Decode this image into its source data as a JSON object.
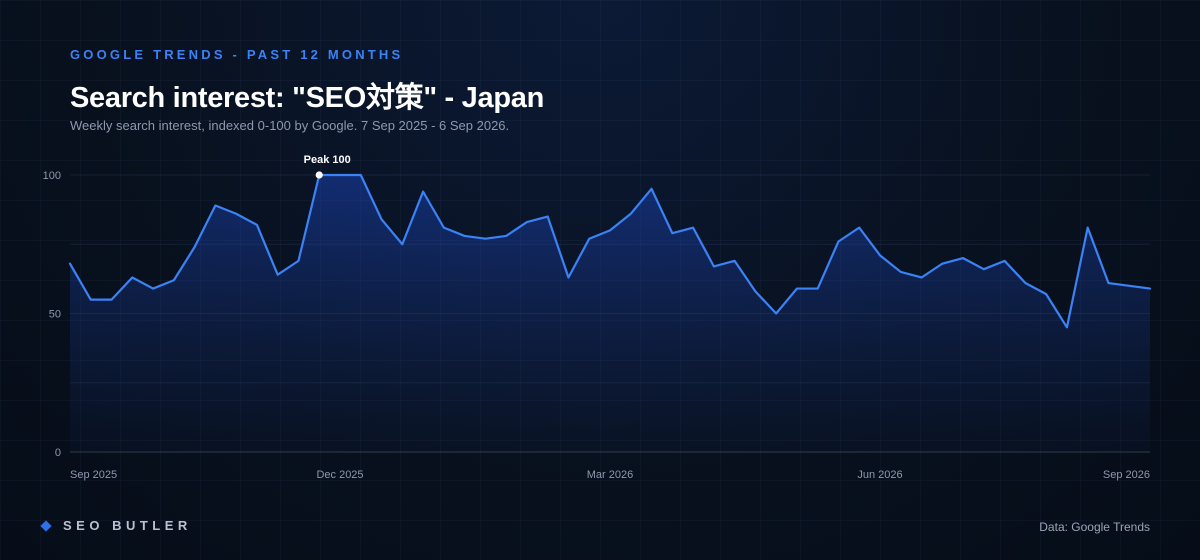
{
  "header": {
    "eyebrow": "GOOGLE TRENDS - PAST 12 MONTHS",
    "title": "Search interest: \"SEO対策\" - Japan",
    "subtitle": "Weekly search interest, indexed 0-100 by Google. 7 Sep 2025 - 6 Sep 2026."
  },
  "footer": {
    "brand": "SEO BUTLER",
    "source": "Data: Google Trends"
  },
  "colors": {
    "line": "#3b82f6",
    "accent": "#3b82f6",
    "background": "#08111f"
  },
  "chart_data": {
    "type": "area",
    "title": "Search interest: \"SEO対策\" - Japan",
    "xlabel": "",
    "ylabel": "",
    "ylim": [
      0,
      100
    ],
    "y_ticks": [
      0,
      50,
      100
    ],
    "grid": true,
    "x_ticks": [
      "Sep 2025",
      "Dec 2025",
      "Mar 2026",
      "Jun 2026",
      "Sep 2026"
    ],
    "x_tick_week_index": [
      0,
      13,
      26,
      39,
      52
    ],
    "annotation": {
      "text": "Peak 100",
      "week_index": 12,
      "value": 100
    },
    "series": [
      {
        "values": [
          68,
          55,
          55,
          63,
          59,
          62,
          74,
          89,
          86,
          82,
          64,
          69,
          100,
          100,
          100,
          84,
          75,
          94,
          81,
          78,
          77,
          78,
          83,
          85,
          63,
          77,
          80,
          86,
          95,
          79,
          81,
          67,
          69,
          58,
          50,
          59,
          59,
          76,
          81,
          71,
          65,
          63,
          68,
          70,
          66,
          69,
          61,
          57,
          45,
          81,
          61,
          60,
          59
        ]
      }
    ]
  }
}
